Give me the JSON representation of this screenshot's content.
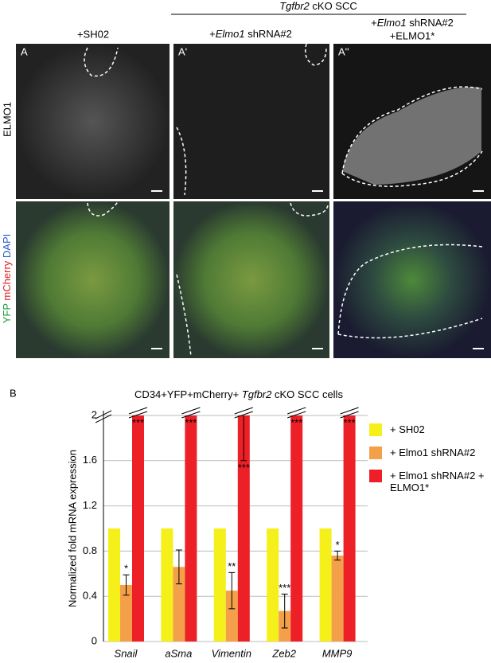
{
  "figure": {
    "header": [
      "Tgfbr2",
      " cKO SCC"
    ],
    "columns": [
      [
        "+SH02"
      ],
      [
        "+",
        "Elmo1",
        " shRNA#2"
      ],
      [
        "+",
        "Elmo1",
        " shRNA#2"
      ],
      [
        "+ELMO1*"
      ]
    ],
    "panel_letters": [
      "A",
      "A'",
      "A''",
      "B"
    ],
    "row_labels": [
      "ELMO1",
      "YFP",
      "mCherry",
      "DAPI"
    ]
  },
  "chart_data": {
    "type": "bar",
    "title": [
      "CD34+YFP+mCherry+ ",
      "Tgfbr2",
      " cKO SCC cells"
    ],
    "y_label": "Normalized fold mRNA expression",
    "categories": [
      "Snail",
      "aSma",
      "Vimentin",
      "Zeb2",
      "MMP9"
    ],
    "ylim": [
      0,
      2
    ],
    "yticks": [
      0,
      0.4,
      0.8,
      1.2,
      1.6,
      2
    ],
    "grid": true,
    "legend": "right",
    "series": [
      {
        "name": "+ SH02",
        "color": "#f5ef1a",
        "values": [
          1,
          1,
          1,
          1,
          1
        ]
      },
      {
        "name": "+ Elmo1 shRNA#2",
        "color": "#f4a04a",
        "values": [
          0.5,
          0.66,
          0.45,
          0.27,
          0.76
        ],
        "errors": [
          0.09,
          0.15,
          0.16,
          0.15,
          0.04
        ],
        "labels": [
          "*",
          null,
          "**",
          "***",
          "*"
        ]
      },
      {
        "name": "+ Elmo1 shRNA#2 + ELMO1*",
        "color": "#ee2027",
        "values": [
          2,
          2,
          2,
          2,
          2
        ],
        "errors": [
          null,
          null,
          0.4,
          null,
          null
        ],
        "labels": [
          "***",
          "***",
          "***",
          "***",
          "***"
        ]
      }
    ]
  }
}
